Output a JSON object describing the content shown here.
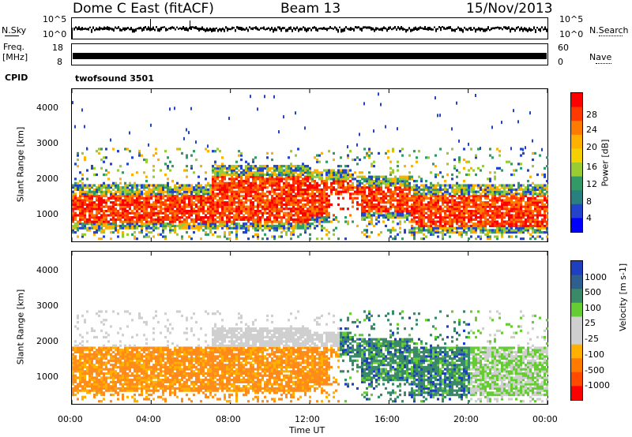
{
  "header": {
    "station": "Dome C East (fitACF)",
    "beam": "Beam 13",
    "date": "15/Nov/2013"
  },
  "top_panels": {
    "nsky_label": "N.Sky",
    "nsky_ticks": [
      "10^5",
      "10^0"
    ],
    "nsearch_label": "N.Search",
    "nsearch_ticks": [
      "10^5",
      "10^0"
    ],
    "freq_label_1": "Freq.",
    "freq_label_2": "[MHz]",
    "freq_ticks": [
      "18",
      "8"
    ],
    "nave_label": "Nave",
    "nave_ticks": [
      "60",
      "0"
    ],
    "cpid_label": "CPID",
    "cpid_value": "twofsound 3501"
  },
  "chart_data": [
    {
      "type": "heatmap",
      "name": "power",
      "ylabel": "Slant Range [km]",
      "yticks": [
        "4000",
        "3000",
        "2000",
        "1000"
      ],
      "ylim": [
        180,
        4500
      ],
      "colorbar_label": "Power [dB]",
      "colorbar_ticks": [
        "28",
        "24",
        "20",
        "16",
        "12",
        "8",
        "4"
      ],
      "colorbar_colors": [
        "#ff0000",
        "#ff3a00",
        "#ff7a00",
        "#ffb000",
        "#f4d000",
        "#99cc33",
        "#339966",
        "#2a7f80",
        "#2244cc",
        "#0000ff"
      ],
      "x_range_hours": [
        0,
        24
      ]
    },
    {
      "type": "heatmap",
      "name": "velocity",
      "ylabel": "Slant Range [km]",
      "yticks": [
        "4000",
        "3000",
        "2000",
        "1000"
      ],
      "ylim": [
        180,
        4500
      ],
      "colorbar_label": "Velocity [m s-1]",
      "colorbar_ticks": [
        "1000",
        "500",
        "100",
        "25",
        "-25",
        "-100",
        "-500",
        "-1000"
      ],
      "colorbar_colors": [
        "#1e3fbf",
        "#2e5f8f",
        "#3a8a6a",
        "#66cc33",
        "#cfcfcf",
        "#cfcfcf",
        "#ffb000",
        "#ff7a00",
        "#ff4a00",
        "#ff0000"
      ],
      "x_range_hours": [
        0,
        24
      ]
    }
  ],
  "xaxis": {
    "ticks": [
      "00:00",
      "04:00",
      "08:00",
      "12:00",
      "16:00",
      "20:00",
      "00:00"
    ],
    "label": "Time UT"
  }
}
